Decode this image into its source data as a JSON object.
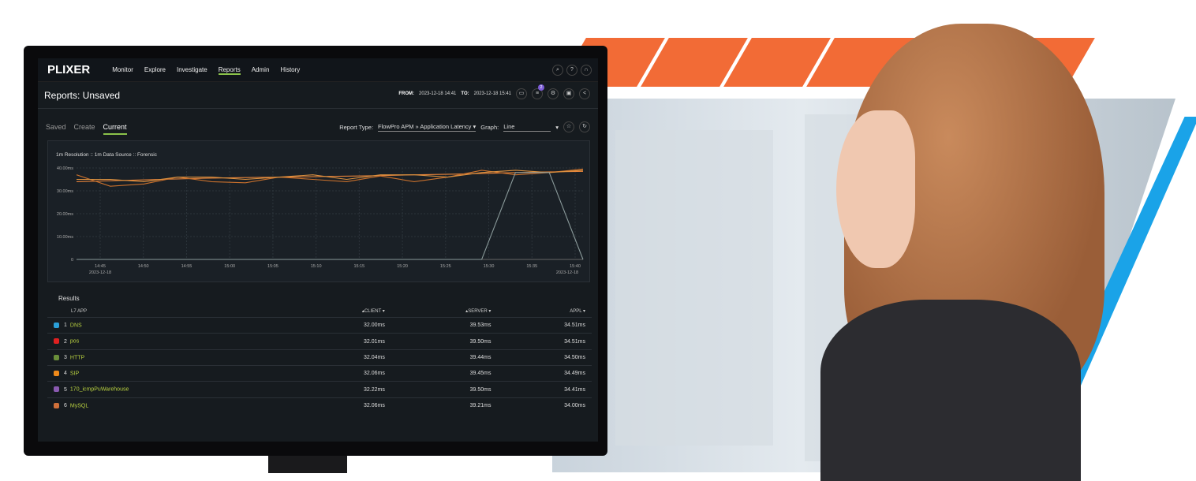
{
  "nav": {
    "logo": "PLIXER",
    "items": [
      {
        "label": "Monitor",
        "icon": "pulse-icon"
      },
      {
        "label": "Explore",
        "icon": "compass-icon"
      },
      {
        "label": "Investigate",
        "icon": "fingerprint-icon"
      },
      {
        "label": "Reports",
        "icon": "chart-icon",
        "active": true
      },
      {
        "label": "Admin",
        "icon": "users-gear-icon"
      },
      {
        "label": "History",
        "icon": "arrow-left-icon"
      }
    ],
    "right_icons": [
      "search-icon",
      "help-icon",
      "headset-icon"
    ]
  },
  "header": {
    "title": "Reports: Unsaved",
    "from_label": "FROM:",
    "from": "2023-12-18 14:41",
    "to_label": "TO:",
    "to": "2023-12-18 15:41",
    "filter_badge": "2"
  },
  "tabs": [
    {
      "label": "Saved"
    },
    {
      "label": "Create"
    },
    {
      "label": "Current",
      "active": true
    }
  ],
  "report": {
    "type_label": "Report Type:",
    "type": "FlowPro APM » Application Latency",
    "graph_label": "Graph:",
    "graph": "Line"
  },
  "chart": {
    "source": "1m Resolution :: 1m Data Source :: Forensic",
    "chart_data": {
      "type": "line",
      "y_ticks": [
        "0",
        "10.00ms",
        "20.00ms",
        "30.00ms",
        "40.00ms"
      ],
      "ylim": [
        0,
        40
      ],
      "x_ticks": [
        "14:45",
        "14:50",
        "14:55",
        "15:00",
        "15:05",
        "15:10",
        "15:15",
        "15:20",
        "15:25",
        "15:30",
        "15:35",
        "15:40"
      ],
      "x_date": "2023-12-18",
      "series": [
        {
          "color": "#e8843a",
          "values": [
            34,
            34.5,
            35,
            35.5,
            35.8,
            36,
            36.3,
            36.6,
            37,
            37.3,
            37.8,
            38.2,
            38.5
          ]
        },
        {
          "color": "#c9702c",
          "values": [
            37,
            32,
            33,
            36,
            34,
            33.5,
            36,
            35,
            34,
            36.5,
            34,
            36,
            39,
            37,
            38,
            39.5
          ]
        },
        {
          "color": "#d99040",
          "values": [
            35,
            35,
            34,
            36,
            36,
            35,
            36,
            37,
            35,
            37,
            37,
            36,
            38,
            39,
            38,
            39
          ]
        },
        {
          "color": "#8a9a9a",
          "values": [
            0,
            0,
            0,
            0,
            0,
            0,
            0,
            0,
            0,
            0,
            0,
            0,
            0,
            38,
            38,
            0
          ]
        }
      ]
    }
  },
  "results": {
    "title": "Results",
    "columns": [
      "L7 APP",
      "CLIENT",
      "SERVER",
      "APPL"
    ],
    "rows": [
      {
        "rank": "1",
        "name": "DNS",
        "color": "#2a9fd8",
        "client": "32.00ms",
        "server": "39.53ms",
        "appl": "34.51ms"
      },
      {
        "rank": "2",
        "name": "pos",
        "color": "#e02020",
        "client": "32.01ms",
        "server": "39.50ms",
        "appl": "34.51ms"
      },
      {
        "rank": "3",
        "name": "HTTP",
        "color": "#6a8f3a",
        "client": "32.04ms",
        "server": "39.44ms",
        "appl": "34.50ms"
      },
      {
        "rank": "4",
        "name": "SIP",
        "color": "#f08a1a",
        "client": "32.06ms",
        "server": "39.45ms",
        "appl": "34.49ms"
      },
      {
        "rank": "5",
        "name": "170_icmpPuWarehouse",
        "color": "#8a5ab0",
        "client": "32.22ms",
        "server": "39.50ms",
        "appl": "34.41ms"
      },
      {
        "rank": "6",
        "name": "MySQL",
        "color": "#d0703a",
        "client": "32.06ms",
        "server": "39.21ms",
        "appl": "34.00ms"
      }
    ]
  },
  "colors": {
    "accent": "#8bc34a",
    "brand_orange": "#f26b36",
    "brand_blue": "#1aa3e8"
  }
}
